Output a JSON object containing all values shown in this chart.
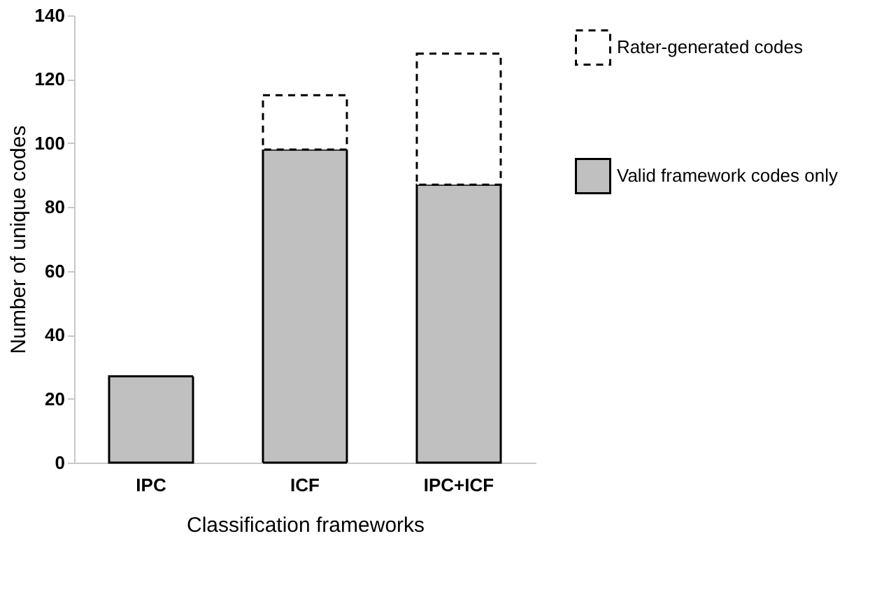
{
  "chart_data": {
    "type": "bar",
    "stacked": true,
    "xlabel": "Classification frameworks",
    "ylabel": "Number of unique codes",
    "categories": [
      "IPC",
      "ICF",
      "IPC+ICF"
    ],
    "series": [
      {
        "name": "Valid framework codes only",
        "color": "#c0c0c0",
        "line_style": "solid",
        "values": [
          27,
          98,
          87
        ]
      },
      {
        "name": "Rater-generated codes",
        "color": "#ffffff",
        "line_style": "dashed",
        "values": [
          null,
          17,
          41
        ]
      }
    ],
    "ylim": [
      0,
      140
    ],
    "yticks": [
      0,
      20,
      40,
      60,
      80,
      100,
      120,
      140
    ],
    "grid": false,
    "legend": "right"
  }
}
